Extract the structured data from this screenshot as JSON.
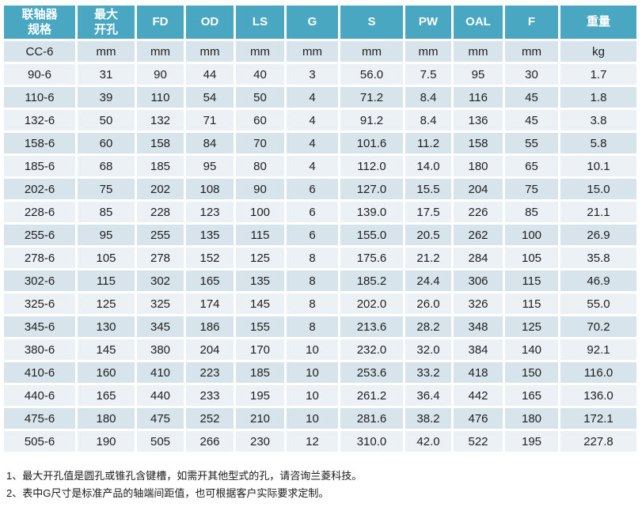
{
  "colors": {
    "header_bg": "#4AA7C1",
    "header_text": "#FFFFFF",
    "row_dark": "#D7E4EB",
    "row_light": "#EBF1F5",
    "grid": "#FFFFFF",
    "cell_text": "#1F1F1F",
    "note_text": "#1A1A1A"
  },
  "chart_data": {
    "type": "table",
    "columns": [
      "联轴器\n规格",
      "最大\n开孔",
      "FD",
      "OD",
      "LS",
      "G",
      "S",
      "PW",
      "OAL",
      "F",
      "重量"
    ],
    "units_row": [
      "CC-6",
      "mm",
      "mm",
      "mm",
      "mm",
      "mm",
      "mm",
      "mm",
      "mm",
      "mm",
      "kg"
    ],
    "rows": [
      [
        "90-6",
        "31",
        "90",
        "44",
        "40",
        "3",
        "56.0",
        "7.5",
        "95",
        "30",
        "1.7"
      ],
      [
        "110-6",
        "39",
        "110",
        "54",
        "50",
        "4",
        "71.2",
        "8.4",
        "116",
        "45",
        "1.8"
      ],
      [
        "132-6",
        "50",
        "132",
        "71",
        "60",
        "4",
        "91.2",
        "8.4",
        "136",
        "45",
        "3.8"
      ],
      [
        "158-6",
        "60",
        "158",
        "84",
        "70",
        "4",
        "101.6",
        "11.2",
        "158",
        "55",
        "5.8"
      ],
      [
        "185-6",
        "68",
        "185",
        "95",
        "80",
        "4",
        "112.0",
        "14.0",
        "180",
        "65",
        "10.1"
      ],
      [
        "202-6",
        "75",
        "202",
        "108",
        "90",
        "6",
        "127.0",
        "15.5",
        "204",
        "75",
        "15.0"
      ],
      [
        "228-6",
        "85",
        "228",
        "123",
        "100",
        "6",
        "139.0",
        "17.5",
        "226",
        "85",
        "21.1"
      ],
      [
        "255-6",
        "95",
        "255",
        "135",
        "115",
        "6",
        "155.0",
        "20.5",
        "262",
        "100",
        "26.9"
      ],
      [
        "278-6",
        "105",
        "278",
        "152",
        "125",
        "8",
        "175.6",
        "21.2",
        "284",
        "105",
        "35.8"
      ],
      [
        "302-6",
        "115",
        "302",
        "165",
        "135",
        "8",
        "185.2",
        "24.4",
        "306",
        "115",
        "46.9"
      ],
      [
        "325-6",
        "125",
        "325",
        "174",
        "145",
        "8",
        "202.0",
        "26.0",
        "326",
        "115",
        "55.0"
      ],
      [
        "345-6",
        "130",
        "345",
        "186",
        "155",
        "8",
        "213.6",
        "28.2",
        "348",
        "125",
        "70.2"
      ],
      [
        "380-6",
        "145",
        "380",
        "204",
        "170",
        "10",
        "232.0",
        "32.0",
        "384",
        "140",
        "92.1"
      ],
      [
        "410-6",
        "160",
        "410",
        "223",
        "185",
        "10",
        "253.6",
        "33.2",
        "418",
        "150",
        "116.0"
      ],
      [
        "440-6",
        "165",
        "440",
        "233",
        "195",
        "10",
        "261.2",
        "36.4",
        "442",
        "165",
        "136.0"
      ],
      [
        "475-6",
        "180",
        "475",
        "252",
        "210",
        "10",
        "281.6",
        "38.2",
        "476",
        "180",
        "172.1"
      ],
      [
        "505-6",
        "190",
        "505",
        "266",
        "230",
        "12",
        "310.0",
        "42.0",
        "522",
        "195",
        "227.8"
      ]
    ]
  },
  "notes": [
    "1、最大开孔值是圆孔或锥孔含键槽，如需开其他型式的孔，请咨询兰菱科技。",
    "2、表中G尺寸是标准产品的轴端间距值，也可根据客户实际要求定制。"
  ]
}
